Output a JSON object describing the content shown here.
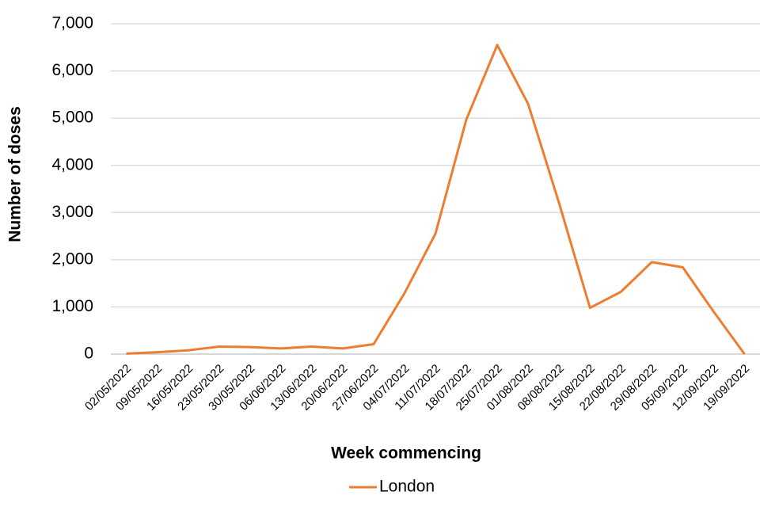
{
  "chart_data": {
    "type": "line",
    "x_label": "Week commencing",
    "y_label": "Number of doses",
    "categories": [
      "02/05/2022",
      "09/05/2022",
      "16/05/2022",
      "23/05/2022",
      "30/05/2022",
      "06/06/2022",
      "13/06/2022",
      "20/06/2022",
      "27/06/2022",
      "04/07/2022",
      "11/07/2022",
      "18/07/2022",
      "25/07/2022",
      "01/08/2022",
      "08/08/2022",
      "15/08/2022",
      "22/08/2022",
      "29/08/2022",
      "05/09/2022",
      "12/09/2022",
      "19/09/2022"
    ],
    "series": [
      {
        "name": "London",
        "color": "#ed7d31",
        "values": [
          10,
          40,
          80,
          160,
          150,
          120,
          160,
          120,
          210,
          1290,
          2550,
          4970,
          6550,
          5300,
          3200,
          980,
          1320,
          1950,
          1840,
          900,
          0
        ]
      }
    ],
    "ylim": [
      0,
      7000
    ],
    "yticks": [
      0,
      {
        "value": 1000,
        "label": "1,000"
      },
      {
        "value": 2000,
        "label": "2,000"
      },
      {
        "value": 3000,
        "label": "3,000"
      },
      {
        "value": 4000,
        "label": "4,000"
      },
      {
        "value": 5000,
        "label": "5,000"
      },
      {
        "value": 6000,
        "label": "6,000"
      },
      {
        "value": 7000,
        "label": "7,000"
      }
    ],
    "grid": true,
    "legend": "bottom"
  }
}
